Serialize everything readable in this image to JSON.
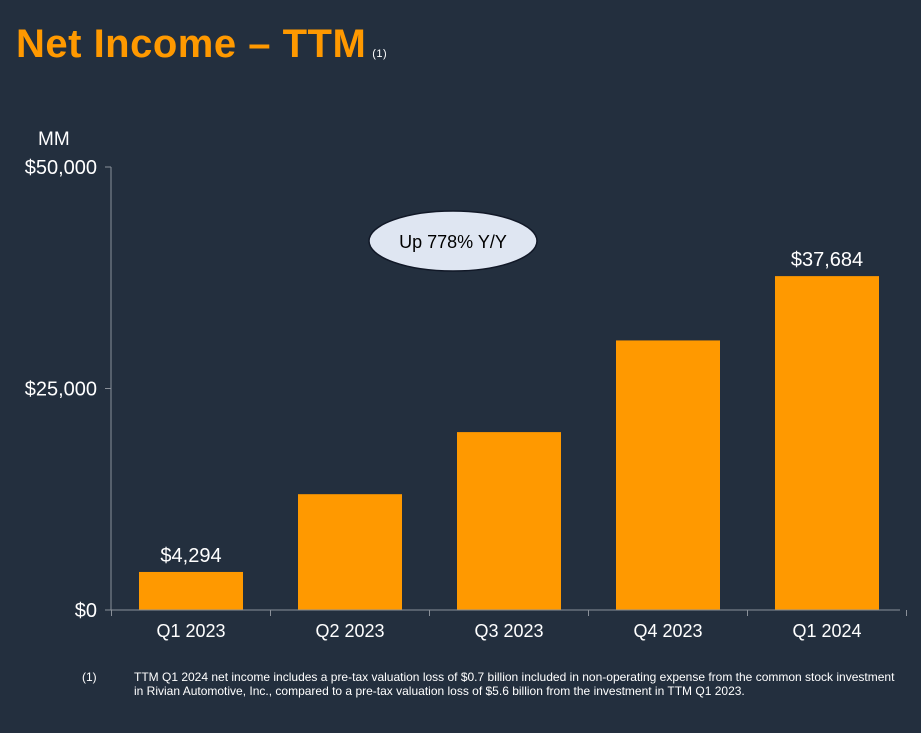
{
  "title": "Net Income – TTM",
  "title_note": "(1)",
  "chart_data": {
    "type": "bar",
    "unit_label": "MM",
    "categories": [
      "Q1 2023",
      "Q2 2023",
      "Q3 2023",
      "Q4 2023",
      "Q1 2024"
    ],
    "values": [
      4294,
      13072,
      20079,
      30425,
      37684
    ],
    "data_labels": [
      "$4,294",
      "",
      "",
      "",
      "$37,684"
    ],
    "yticks": [
      0,
      25000,
      50000
    ],
    "ytick_labels": [
      "$0",
      "$25,000",
      "$50,000"
    ],
    "ylim": [
      0,
      50000
    ],
    "bar_color": "#ff9900",
    "grid": false,
    "annotation": "Up 778% Y/Y"
  },
  "footnote": {
    "number": "(1)",
    "text": "TTM Q1 2024 net income includes a pre-tax valuation loss of $0.7 billion included in non-operating expense from the common stock investment in Rivian Automotive, Inc., compared to a pre-tax valuation loss of $5.6 billion from the investment in TTM Q1 2023."
  }
}
